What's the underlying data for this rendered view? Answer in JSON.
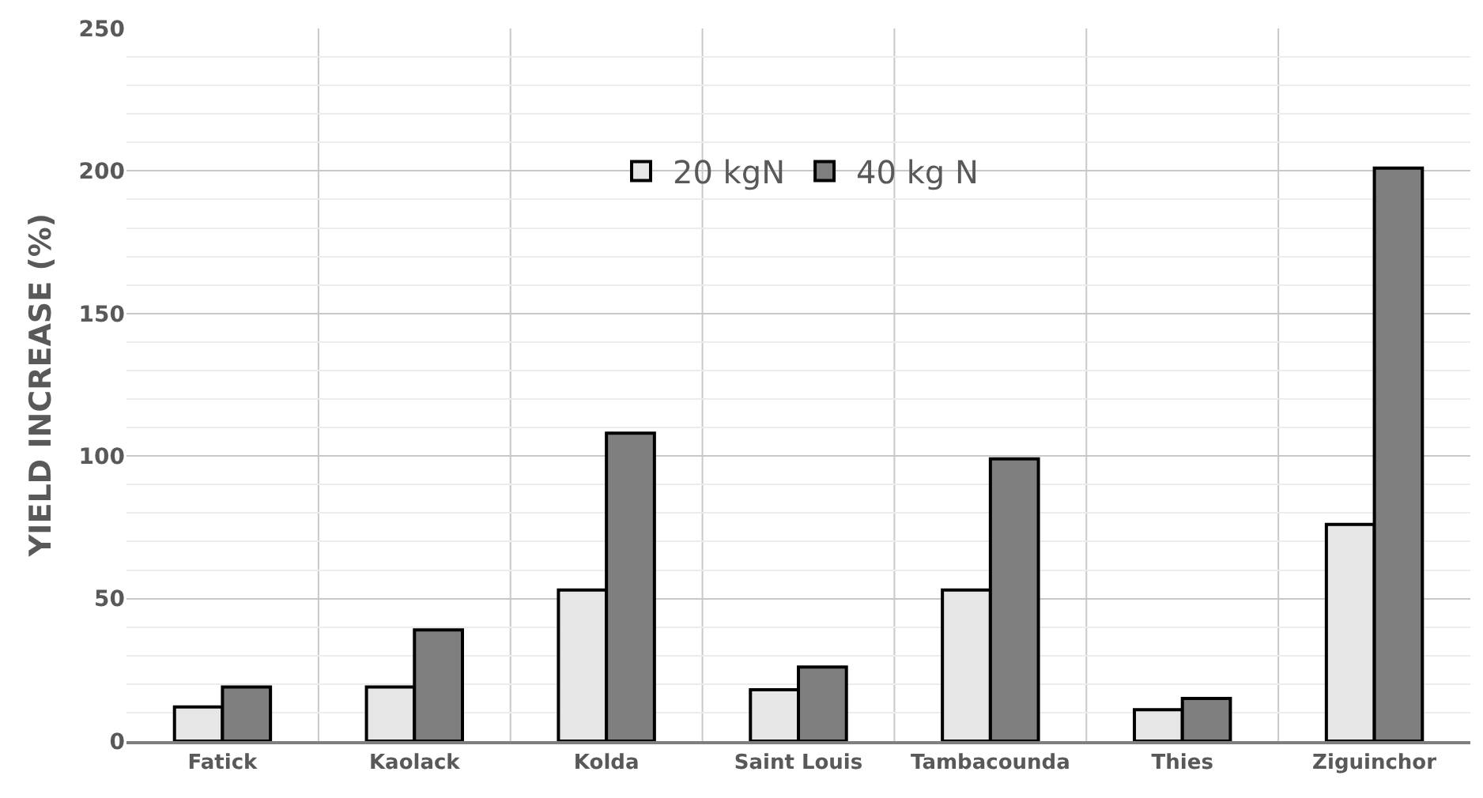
{
  "chart_data": {
    "type": "bar",
    "ylabel": "YIELD INCREASE (%)",
    "categories": [
      "Fatick",
      "Kaolack",
      "Kolda",
      "Saint Louis",
      "Tambacounda",
      "Thies",
      "Ziguinchor"
    ],
    "series": [
      {
        "name": "20 kgN",
        "color": "#e6e6e6",
        "values": [
          12,
          19,
          53,
          18,
          53,
          11,
          76
        ]
      },
      {
        "name": "40 kg N",
        "color": "#7f7f7f",
        "values": [
          19,
          39,
          108,
          26,
          99,
          15,
          201
        ]
      }
    ],
    "ylim": [
      0,
      250
    ],
    "yticks": [
      0,
      50,
      100,
      150,
      200,
      250
    ],
    "grid": true,
    "legend": "top"
  }
}
